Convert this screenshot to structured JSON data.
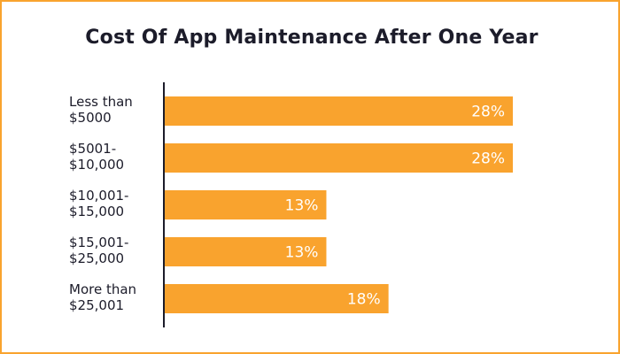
{
  "chart_data": {
    "type": "bar",
    "orientation": "horizontal",
    "title": "Cost Of App Maintenance After One Year",
    "categories": [
      [
        "Less than",
        "$5000"
      ],
      [
        "$5001-",
        "$10,000"
      ],
      [
        "$10,001-",
        "$15,000"
      ],
      [
        "$15,001-",
        "$25,000"
      ],
      [
        "More than",
        "$25,001"
      ]
    ],
    "values": [
      28,
      28,
      13,
      13,
      18
    ],
    "value_labels": [
      "28%",
      "28%",
      "13%",
      "13%",
      "18%"
    ],
    "xlim": [
      0,
      28
    ],
    "grid": false,
    "legend": "none"
  },
  "colors": {
    "bar": "#f9a32e",
    "border": "#f9a32e",
    "axis": "#1c1c2a",
    "text": "#1c1c2a",
    "value_text": "#ffffff"
  }
}
